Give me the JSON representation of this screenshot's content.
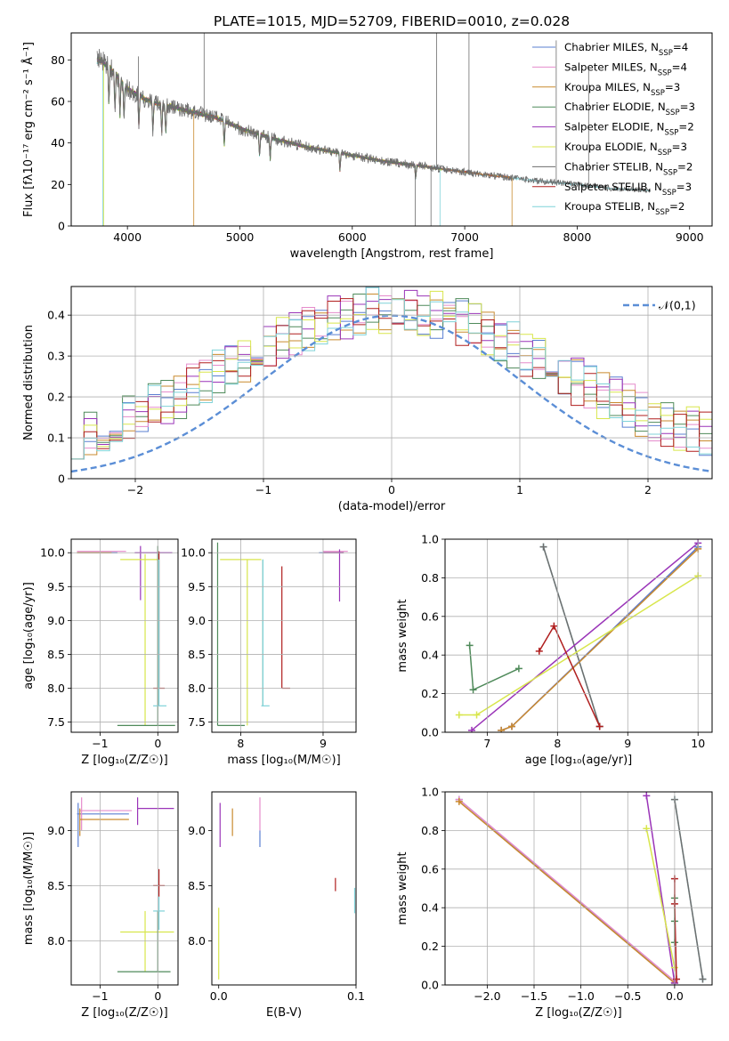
{
  "figure_title": "PLATE=1015, MJD=52709, FIBERID=0010, z=0.028",
  "colors": {
    "Chabrier MILES": "#5a7fd1",
    "Salpeter MILES": "#e58ccc",
    "Kroupa MILES": "#c98a2e",
    "Chabrier ELODIE": "#4f8a5a",
    "Salpeter ELODIE": "#9a34b8",
    "Kroupa ELODIE": "#d8e64c",
    "Chabrier STELIB": "#6e6e6e",
    "Salpeter STELIB": "#b01e1e",
    "Kroupa STELIB": "#7fd2d8"
  },
  "chart_data": [
    {
      "id": "spectrum",
      "type": "line",
      "title": "PLATE=1015, MJD=52709, FIBERID=0010, z=0.028",
      "xlabel": "wavelength [Angstrom, rest frame]",
      "ylabel": "Flux [fλ10⁻¹⁷ erg cm⁻² s⁻¹ Å⁻¹]",
      "xlim": [
        3500,
        9200
      ],
      "ylim": [
        0,
        93
      ],
      "xticks": [
        4000,
        5000,
        6000,
        7000,
        8000,
        9000
      ],
      "yticks": [
        0,
        20,
        40,
        60,
        80
      ],
      "grid": false,
      "legend": "top-right",
      "series": [
        {
          "name": "Chabrier MILES, NSSP=4",
          "ssp": "4"
        },
        {
          "name": "Salpeter MILES, NSSP=4",
          "ssp": "4"
        },
        {
          "name": "Kroupa MILES, NSSP=3",
          "ssp": "3"
        },
        {
          "name": "Chabrier ELODIE, NSSP=3",
          "ssp": "3"
        },
        {
          "name": "Salpeter ELODIE, NSSP=2",
          "ssp": "2"
        },
        {
          "name": "Kroupa ELODIE, NSSP=3",
          "ssp": "3"
        },
        {
          "name": "Chabrier STELIB, NSSP=2",
          "ssp": "2"
        },
        {
          "name": "Salpeter STELIB, NSSP=3",
          "ssp": "3"
        },
        {
          "name": "Kroupa STELIB, NSSP=2",
          "ssp": "2"
        }
      ],
      "continuum": {
        "x": [
          3750,
          3850,
          4000,
          4200,
          4500,
          4800,
          5000,
          5300,
          5600,
          6000,
          6300,
          6600,
          7000,
          7300,
          7600,
          8000,
          8300,
          8700
        ],
        "y": [
          80,
          76,
          66,
          60,
          56,
          52,
          47,
          42,
          38,
          34,
          31,
          29,
          26,
          24,
          22,
          20,
          18,
          17
        ]
      }
    },
    {
      "id": "residuals",
      "type": "line",
      "xlabel": "(data-model)/error",
      "ylabel": "Normed distribution",
      "xlim": [
        -2.5,
        2.5
      ],
      "ylim": [
        0,
        0.47
      ],
      "xticks": [
        -2,
        -1,
        0,
        1,
        2
      ],
      "yticks": [
        0.0,
        0.1,
        0.2,
        0.3,
        0.4
      ],
      "grid": true,
      "legend": "top-right",
      "legend_label": "𝒩(0,1)",
      "gaussian": {
        "mean": 0,
        "sigma": 1
      },
      "hist_bin_width": 0.1
    },
    {
      "id": "age_vs_Z",
      "type": "scatter",
      "xlabel": "Z [log₁₀(Z/Z☉)]",
      "ylabel": "age  [log₁₀(age/yr)]",
      "xlim": [
        -1.5,
        0.35
      ],
      "ylim": [
        7.35,
        10.2
      ],
      "xticks": [
        -1,
        0
      ],
      "yticks": [
        7.5,
        8.0,
        8.5,
        9.0,
        9.5,
        10.0
      ],
      "grid": true,
      "segments": [
        {
          "s": "Chabrier MILES",
          "type": "h",
          "c": -1.05,
          "a": 10.0,
          "lo": -1.4,
          "hi": -0.7
        },
        {
          "s": "Salpeter MILES",
          "type": "h",
          "c": -1.05,
          "a": 10.02,
          "lo": -1.4,
          "hi": -0.55
        },
        {
          "s": "Kroupa MILES",
          "type": "h",
          "c": -1.1,
          "a": 10.0,
          "lo": -1.4,
          "hi": -0.8
        },
        {
          "s": "Salpeter ELODIE",
          "type": "h",
          "c": -0.1,
          "a": 10.0,
          "lo": -0.4,
          "hi": 0.25
        },
        {
          "s": "Salpeter ELODIE",
          "type": "v",
          "c": -0.3,
          "a": 10.0,
          "lo": 9.3,
          "hi": 10.1
        },
        {
          "s": "Kroupa ELODIE",
          "type": "h",
          "c": -0.15,
          "a": 9.9,
          "lo": -0.65,
          "hi": 0.0
        },
        {
          "s": "Kroupa ELODIE",
          "type": "v",
          "c": -0.22,
          "a": 9.9,
          "lo": 7.45,
          "hi": 9.98
        },
        {
          "s": "Chabrier ELODIE",
          "type": "h",
          "c": -0.2,
          "a": 7.45,
          "lo": -0.7,
          "hi": 0.3
        },
        {
          "s": "Chabrier ELODIE",
          "type": "v",
          "c": 0.0,
          "a": 7.45,
          "lo": 7.45,
          "hi": 10.1
        },
        {
          "s": "Salpeter STELIB",
          "type": "h",
          "c": 0.02,
          "a": 8.0,
          "lo": -0.08,
          "hi": 0.12
        },
        {
          "s": "Salpeter STELIB",
          "type": "v",
          "c": 0.02,
          "a": 8.0,
          "lo": 8.0,
          "hi": 10.02
        },
        {
          "s": "Kroupa STELIB",
          "type": "h",
          "c": 0.02,
          "a": 7.74,
          "lo": -0.08,
          "hi": 0.15
        },
        {
          "s": "Kroupa STELIB",
          "type": "v",
          "c": 0.02,
          "a": 7.74,
          "lo": 7.74,
          "hi": 9.9
        }
      ]
    },
    {
      "id": "age_vs_mass",
      "type": "scatter",
      "xlabel": "mass [log₁₀(M/M☉)]",
      "ylabel": "",
      "xlim": [
        7.65,
        9.4
      ],
      "ylim": [
        7.35,
        10.2
      ],
      "xticks": [
        8,
        9
      ],
      "yticks": [
        7.5,
        8.0,
        8.5,
        9.0,
        9.5,
        10.0
      ],
      "grid": true,
      "segments": [
        {
          "s": "Chabrier MILES",
          "type": "h",
          "c": 9.1,
          "a": 10.0,
          "lo": 8.95,
          "hi": 9.25
        },
        {
          "s": "Salpeter MILES",
          "type": "h",
          "c": 9.15,
          "a": 10.02,
          "lo": 9.0,
          "hi": 9.3
        },
        {
          "s": "Kroupa MILES",
          "type": "h",
          "c": 9.1,
          "a": 10.0,
          "lo": 9.0,
          "hi": 9.25
        },
        {
          "s": "Salpeter ELODIE",
          "type": "v",
          "c": 9.2,
          "a": 10.0,
          "lo": 9.28,
          "hi": 10.05
        },
        {
          "s": "Salpeter ELODIE",
          "type": "h",
          "c": 9.15,
          "a": 10.0,
          "lo": 9.0,
          "hi": 9.25
        },
        {
          "s": "Kroupa ELODIE",
          "type": "v",
          "c": 8.08,
          "a": 9.9,
          "lo": 7.45,
          "hi": 9.9
        },
        {
          "s": "Kroupa ELODIE",
          "type": "h",
          "c": 7.95,
          "a": 9.9,
          "lo": 7.75,
          "hi": 8.25
        },
        {
          "s": "Chabrier ELODIE",
          "type": "v",
          "c": 7.72,
          "a": 7.45,
          "lo": 7.45,
          "hi": 10.15
        },
        {
          "s": "Chabrier ELODIE",
          "type": "h",
          "c": 7.9,
          "a": 7.45,
          "lo": 7.72,
          "hi": 8.05
        },
        {
          "s": "Chabrier ELODIE",
          "type": "v",
          "c": 8.27,
          "a": 7.74,
          "lo": 7.74,
          "hi": 9.9
        },
        {
          "s": "Salpeter STELIB",
          "type": "v",
          "c": 8.5,
          "a": 8.0,
          "lo": 8.0,
          "hi": 9.8
        },
        {
          "s": "Salpeter STELIB",
          "type": "h",
          "c": 8.55,
          "a": 8.0,
          "lo": 8.5,
          "hi": 8.6
        },
        {
          "s": "Kroupa STELIB",
          "type": "v",
          "c": 8.27,
          "a": 7.74,
          "lo": 7.74,
          "hi": 9.9
        },
        {
          "s": "Kroupa STELIB",
          "type": "h",
          "c": 8.3,
          "a": 7.74,
          "lo": 8.25,
          "hi": 8.35
        }
      ]
    },
    {
      "id": "weight_vs_age",
      "type": "line",
      "xlabel": "age  [log₁₀(age/yr)]",
      "ylabel": "mass weight",
      "xlim": [
        6.4,
        10.2
      ],
      "ylim": [
        0,
        1.0
      ],
      "xticks": [
        7,
        8,
        9,
        10
      ],
      "yticks": [
        0.0,
        0.2,
        0.4,
        0.6,
        0.8,
        1.0
      ],
      "grid": true,
      "series": [
        {
          "s": "Kroupa STELIB",
          "x": [
            7.8,
            8.6
          ],
          "y": [
            0.96,
            0.03
          ]
        },
        {
          "s": "Chabrier STELIB",
          "x": [
            7.8,
            8.6
          ],
          "y": [
            0.96,
            0.03
          ]
        },
        {
          "s": "Salpeter ELODIE",
          "x": [
            6.78,
            10.0
          ],
          "y": [
            0.01,
            0.98
          ]
        },
        {
          "s": "Salpeter MILES",
          "x": [
            7.2,
            7.35,
            10.0
          ],
          "y": [
            0.01,
            0.03,
            0.96
          ]
        },
        {
          "s": "Chabrier MILES",
          "x": [
            7.2,
            7.35,
            10.0
          ],
          "y": [
            0.01,
            0.03,
            0.96
          ]
        },
        {
          "s": "Kroupa MILES",
          "x": [
            7.2,
            7.35,
            10.0
          ],
          "y": [
            0.01,
            0.03,
            0.95
          ]
        },
        {
          "s": "Kroupa ELODIE",
          "x": [
            6.6,
            6.85,
            10.0
          ],
          "y": [
            0.09,
            0.09,
            0.81
          ]
        },
        {
          "s": "Chabrier ELODIE",
          "x": [
            7.45,
            6.8,
            6.75
          ],
          "y": [
            0.33,
            0.22,
            0.45
          ]
        },
        {
          "s": "Salpeter STELIB",
          "x": [
            7.74,
            7.95,
            8.6
          ],
          "y": [
            0.42,
            0.55,
            0.03
          ]
        }
      ]
    },
    {
      "id": "mass_vs_Z",
      "type": "scatter",
      "xlabel": "Z [log₁₀(Z/Z☉)]",
      "ylabel": "mass [log₁₀(M/M☉)]",
      "xlim": [
        -1.5,
        0.35
      ],
      "ylim": [
        7.6,
        9.35
      ],
      "xticks": [
        -1,
        0
      ],
      "yticks": [
        8.0,
        8.5,
        9.0
      ],
      "grid": true,
      "segments": [
        {
          "s": "Chabrier MILES",
          "type": "v",
          "c": -1.38,
          "a": 9.1,
          "lo": 8.85,
          "hi": 9.25
        },
        {
          "s": "Chabrier MILES",
          "type": "h",
          "c": -1.0,
          "a": 9.15,
          "lo": -1.4,
          "hi": -0.5
        },
        {
          "s": "Salpeter MILES",
          "type": "v",
          "c": -1.32,
          "a": 9.18,
          "lo": 9.0,
          "hi": 9.3
        },
        {
          "s": "Salpeter MILES",
          "type": "h",
          "c": -0.9,
          "a": 9.18,
          "lo": -1.35,
          "hi": -0.45
        },
        {
          "s": "Kroupa MILES",
          "type": "v",
          "c": -1.35,
          "a": 9.1,
          "lo": 8.95,
          "hi": 9.2
        },
        {
          "s": "Kroupa MILES",
          "type": "h",
          "c": -1.0,
          "a": 9.1,
          "lo": -1.35,
          "hi": -0.5
        },
        {
          "s": "Salpeter ELODIE",
          "type": "v",
          "c": -0.35,
          "a": 9.2,
          "lo": 9.05,
          "hi": 9.3
        },
        {
          "s": "Salpeter ELODIE",
          "type": "h",
          "c": -0.05,
          "a": 9.2,
          "lo": -0.35,
          "hi": 0.28
        },
        {
          "s": "Kroupa ELODIE",
          "type": "v",
          "c": -0.22,
          "a": 8.08,
          "lo": 7.72,
          "hi": 8.27
        },
        {
          "s": "Kroupa ELODIE",
          "type": "h",
          "c": -0.2,
          "a": 8.08,
          "lo": -0.65,
          "hi": 0.28
        },
        {
          "s": "Chabrier ELODIE",
          "type": "v",
          "c": 0.0,
          "a": 7.72,
          "lo": 7.72,
          "hi": 8.27
        },
        {
          "s": "Chabrier ELODIE",
          "type": "h",
          "c": -0.25,
          "a": 7.72,
          "lo": -0.7,
          "hi": 0.22
        },
        {
          "s": "Salpeter STELIB",
          "type": "v",
          "c": 0.02,
          "a": 8.5,
          "lo": 8.4,
          "hi": 8.65
        },
        {
          "s": "Salpeter STELIB",
          "type": "h",
          "c": 0.02,
          "a": 8.5,
          "lo": -0.08,
          "hi": 0.12
        },
        {
          "s": "Kroupa STELIB",
          "type": "v",
          "c": 0.02,
          "a": 8.27,
          "lo": 8.1,
          "hi": 8.4
        },
        {
          "s": "Kroupa STELIB",
          "type": "h",
          "c": 0.02,
          "a": 8.27,
          "lo": -0.08,
          "hi": 0.12
        }
      ]
    },
    {
      "id": "mass_vs_ebv",
      "type": "scatter",
      "xlabel": "E(B-V)",
      "ylabel": "",
      "xlim": [
        -0.005,
        0.1
      ],
      "ylim": [
        7.6,
        9.35
      ],
      "xticks": [
        0.0,
        0.1
      ],
      "yticks": [
        8.0,
        8.5,
        9.0
      ],
      "grid": false,
      "segments": [
        {
          "s": "Salpeter ELODIE",
          "type": "v",
          "c": 0.001,
          "a": 9.0,
          "lo": 8.85,
          "hi": 9.25
        },
        {
          "s": "Kroupa ELODIE",
          "type": "v",
          "c": 0.0,
          "a": 8.0,
          "lo": 7.65,
          "hi": 8.3
        },
        {
          "s": "Kroupa MILES",
          "type": "v",
          "c": 0.01,
          "a": 9.1,
          "lo": 8.95,
          "hi": 9.2
        },
        {
          "s": "Salpeter MILES",
          "type": "v",
          "c": 0.03,
          "a": 9.15,
          "lo": 9.0,
          "hi": 9.3
        },
        {
          "s": "Chabrier MILES",
          "type": "v",
          "c": 0.03,
          "a": 9.0,
          "lo": 8.85,
          "hi": 9.0
        },
        {
          "s": "Salpeter STELIB",
          "type": "v",
          "c": 0.085,
          "a": 8.5,
          "lo": 8.45,
          "hi": 8.57
        },
        {
          "s": "Kroupa STELIB",
          "type": "v",
          "c": 0.099,
          "a": 8.35,
          "lo": 8.25,
          "hi": 8.48
        }
      ]
    },
    {
      "id": "weight_vs_Z",
      "type": "line",
      "xlabel": "Z [log₁₀(Z/Z☉)]",
      "ylabel": "mass weight",
      "xlim": [
        -2.45,
        0.4
      ],
      "ylim": [
        0,
        1.0
      ],
      "xticks": [
        -2.0,
        -1.5,
        -1.0,
        -0.5,
        0.0
      ],
      "yticks": [
        0.0,
        0.2,
        0.4,
        0.6,
        0.8,
        1.0
      ],
      "grid": true,
      "series": [
        {
          "s": "Chabrier MILES",
          "x": [
            -2.3,
            0.0
          ],
          "y": [
            0.96,
            0.01
          ]
        },
        {
          "s": "Salpeter MILES",
          "x": [
            -2.3,
            0.0
          ],
          "y": [
            0.96,
            0.02
          ]
        },
        {
          "s": "Kroupa MILES",
          "x": [
            -2.3,
            0.0
          ],
          "y": [
            0.95,
            0.01
          ]
        },
        {
          "s": "Salpeter ELODIE",
          "x": [
            -0.3,
            0.0
          ],
          "y": [
            0.98,
            0.01
          ]
        },
        {
          "s": "Kroupa ELODIE",
          "x": [
            -0.3,
            0.0
          ],
          "y": [
            0.81,
            0.09
          ]
        },
        {
          "s": "Chabrier ELODIE",
          "x": [
            0.0,
            0.0,
            0.0
          ],
          "y": [
            0.45,
            0.22,
            0.33
          ]
        },
        {
          "s": "Salpeter STELIB",
          "x": [
            0.0,
            0.0,
            0.02
          ],
          "y": [
            0.55,
            0.42,
            0.03
          ]
        },
        {
          "s": "Kroupa STELIB",
          "x": [
            0.0,
            0.3
          ],
          "y": [
            0.96,
            0.03
          ]
        },
        {
          "s": "Chabrier STELIB",
          "x": [
            0.0,
            0.3
          ],
          "y": [
            0.96,
            0.03
          ]
        }
      ]
    }
  ]
}
